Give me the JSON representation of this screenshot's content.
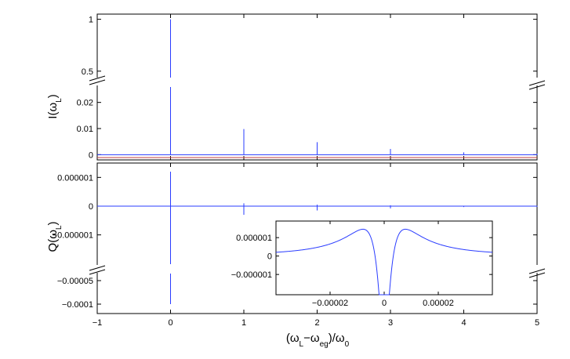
{
  "colors": {
    "line": "#2a3cff",
    "axis": "#000000",
    "bg": "#ffffff"
  },
  "chart_data": [
    {
      "type": "line",
      "panel": "top",
      "title": "",
      "ylabel": "I(ω_L)",
      "xlim": [
        -1,
        5
      ],
      "ylim_lower": [
        -0.002,
        0.028
      ],
      "ylim_upper": [
        0.4,
        1.05
      ],
      "axis_break": true,
      "yticks_upper": [
        {
          "v": 0.5,
          "label": "0.5"
        },
        {
          "v": 1,
          "label": "1"
        }
      ],
      "yticks_lower": [
        {
          "v": 0,
          "label": "0"
        },
        {
          "v": 0.01,
          "label": "0.01"
        },
        {
          "v": 0.02,
          "label": "0.02"
        }
      ],
      "peaks": [
        {
          "x": 0,
          "y": 1.0
        },
        {
          "x": 1,
          "y": 0.0098
        },
        {
          "x": 2,
          "y": 0.0048
        },
        {
          "x": 3,
          "y": 0.0022
        },
        {
          "x": 4,
          "y": 0.0009
        },
        {
          "x": 5,
          "y": 0.0004
        }
      ],
      "baseline": 0
    },
    {
      "type": "line",
      "panel": "bottom",
      "title": "",
      "xlabel": "(ω_L−ω_eg)/ω_0",
      "ylabel": "Q(ω_L)",
      "xlim": [
        -1,
        5
      ],
      "ylim_upper": [
        -2.1e-06,
        1.5e-06
      ],
      "ylim_lower": [
        -0.00012,
        -2e-05
      ],
      "axis_break": true,
      "xticks": [
        {
          "v": -1,
          "label": "−1"
        },
        {
          "v": 0,
          "label": "0"
        },
        {
          "v": 1,
          "label": "1"
        },
        {
          "v": 2,
          "label": "2"
        },
        {
          "v": 3,
          "label": "3"
        },
        {
          "v": 4,
          "label": "4"
        },
        {
          "v": 5,
          "label": "5"
        }
      ],
      "yticks_upper": [
        {
          "v": 1e-06,
          "label": "0.000001"
        },
        {
          "v": 0,
          "label": "0"
        },
        {
          "v": -1e-06,
          "label": "−0.000001"
        }
      ],
      "yticks_lower": [
        {
          "v": -5e-05,
          "label": "−0.00005"
        },
        {
          "v": -0.0001,
          "label": "−0.0001"
        }
      ],
      "features": [
        {
          "x": 0,
          "max": 1.2e-06,
          "min": -0.0001
        },
        {
          "x": 1,
          "max": 1e-07,
          "min": -3e-07
        },
        {
          "x": 2,
          "max": 5e-08,
          "min": -1.5e-07
        },
        {
          "x": 3,
          "max": 3e-08,
          "min": -8e-08
        },
        {
          "x": 4,
          "max": 1e-08,
          "min": -3e-08
        },
        {
          "x": 5,
          "max": 1e-08,
          "min": -2e-08
        }
      ]
    },
    {
      "type": "line",
      "panel": "inset",
      "title": "",
      "xlim": [
        -4e-05,
        4e-05
      ],
      "ylim": [
        -2.1e-06,
        1.9e-06
      ],
      "xticks": [
        {
          "v": -2e-05,
          "label": "−0.00002"
        },
        {
          "v": 0,
          "label": "0"
        },
        {
          "v": 2e-05,
          "label": "0.00002"
        }
      ],
      "yticks": [
        {
          "v": 1e-06,
          "label": "0.000001"
        },
        {
          "v": 0,
          "label": "0"
        },
        {
          "v": -1e-06,
          "label": "−0.000001"
        }
      ],
      "curve": {
        "amplitude": 1.65e-06,
        "width": 4e-06,
        "center": 0,
        "x_range": [
          -4e-05,
          4e-05
        ],
        "clip_min": -2.1e-06
      }
    }
  ]
}
